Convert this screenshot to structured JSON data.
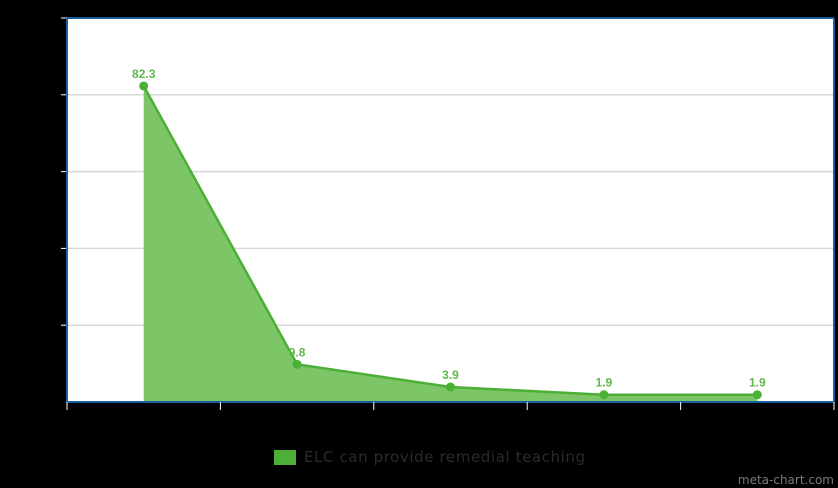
{
  "chart_data": {
    "type": "area",
    "categories": [
      "",
      "",
      "",
      "",
      ""
    ],
    "series": [
      {
        "name": "ELC can provide remedial teaching",
        "values": [
          82.3,
          9.8,
          3.9,
          1.9,
          1.9
        ]
      }
    ],
    "data_labels": [
      "82.3",
      "9.8",
      "3.9",
      "1.9",
      "1.9"
    ],
    "ylim": [
      0,
      100
    ],
    "title": "",
    "xlabel": "",
    "ylabel": "",
    "grid": true,
    "legend_position": "bottom-center"
  },
  "colors": {
    "series_line": "#4caf36",
    "series_fill": "#7cc668",
    "label": "#5fb84a",
    "axis": "#1a5fa0",
    "grid": "#d7d7d7",
    "plot_bg": "#ffffff",
    "page_bg": "#000000"
  },
  "watermark": "meta-chart.com"
}
